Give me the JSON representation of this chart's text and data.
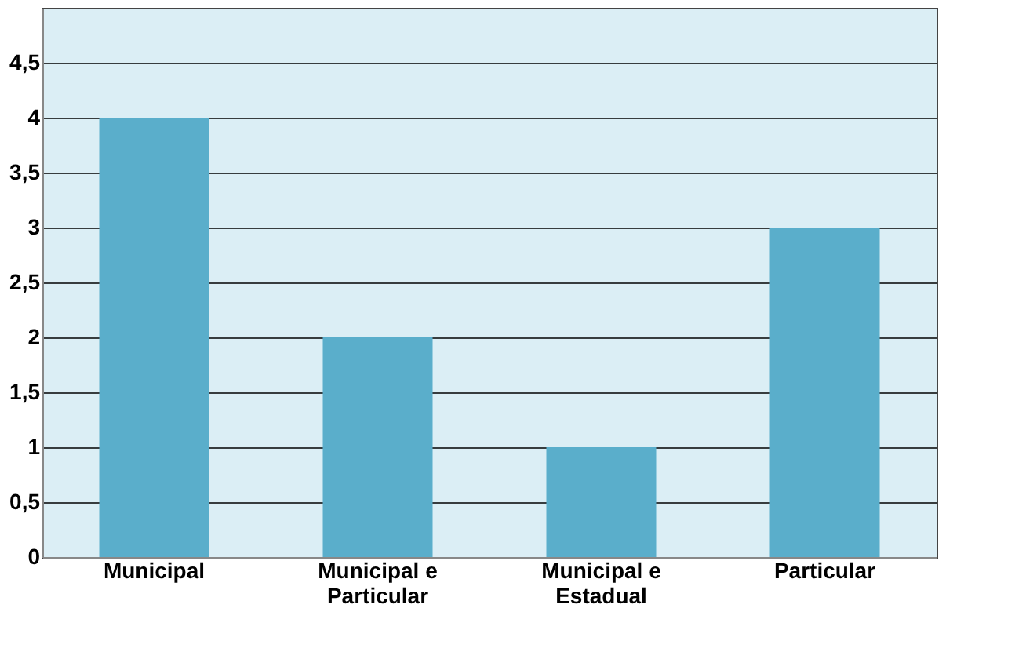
{
  "chart_data": {
    "type": "bar",
    "categories": [
      "Municipal",
      "Municipal e Particular",
      "Municipal e Estadual",
      "Particular"
    ],
    "values": [
      4,
      2,
      1,
      3
    ],
    "color": "#5aaecb",
    "ylim": [
      0,
      5
    ],
    "yticks": [
      0,
      {
        "value": 0.5,
        "label": "0,5"
      },
      1,
      {
        "value": 1.5,
        "label": "1,5"
      },
      2,
      {
        "value": 2.5,
        "label": "2,5"
      },
      3,
      {
        "value": 3.5,
        "label": "3,5"
      },
      4,
      {
        "value": 4.5,
        "label": "4,5"
      }
    ],
    "grid": "y"
  }
}
